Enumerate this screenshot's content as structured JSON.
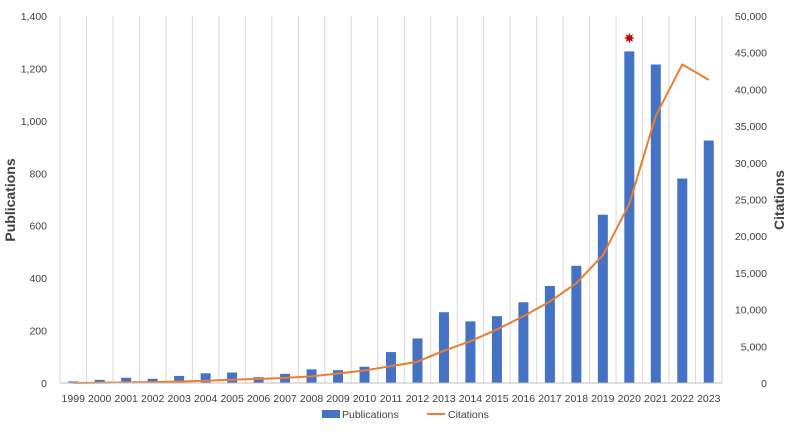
{
  "chart_data": {
    "type": "bar",
    "categories": [
      "1999",
      "2000",
      "2001",
      "2002",
      "2003",
      "2004",
      "2005",
      "2006",
      "2007",
      "2008",
      "2009",
      "2010",
      "2011",
      "2012",
      "2013",
      "2014",
      "2015",
      "2016",
      "2017",
      "2018",
      "2019",
      "2020",
      "2021",
      "2022",
      "2023"
    ],
    "series": [
      {
        "name": "Publications",
        "type": "bar",
        "axis": "left",
        "color": "#4472C4",
        "values": [
          6,
          12,
          20,
          16,
          27,
          37,
          40,
          22,
          35,
          52,
          49,
          62,
          118,
          170,
          270,
          235,
          255,
          308,
          370,
          447,
          642,
          1265,
          1215,
          780,
          925
        ]
      },
      {
        "name": "Citations",
        "type": "line",
        "axis": "right",
        "color": "#ED7D31",
        "values": [
          0,
          30,
          80,
          120,
          200,
          300,
          450,
          550,
          700,
          900,
          1300,
          1700,
          2300,
          2900,
          4400,
          5700,
          7300,
          9100,
          11100,
          13600,
          17400,
          24400,
          36400,
          43400,
          41300
        ]
      }
    ],
    "ylabel": "Publications",
    "y2label": "Citations",
    "ylim": [
      0,
      1400
    ],
    "y2lim": [
      0,
      50000
    ],
    "yticks": [
      "0",
      "200",
      "400",
      "600",
      "800",
      "1,000",
      "1,200",
      "1,400"
    ],
    "y2ticks": [
      "0",
      "5,000",
      "10,000",
      "15,000",
      "20,000",
      "25,000",
      "30,000",
      "35,000",
      "40,000",
      "45,000",
      "50,000"
    ],
    "grid": "vertical",
    "legend": "bottom",
    "marker": {
      "category": "2020",
      "shape": "star",
      "color": "#C00000"
    }
  }
}
